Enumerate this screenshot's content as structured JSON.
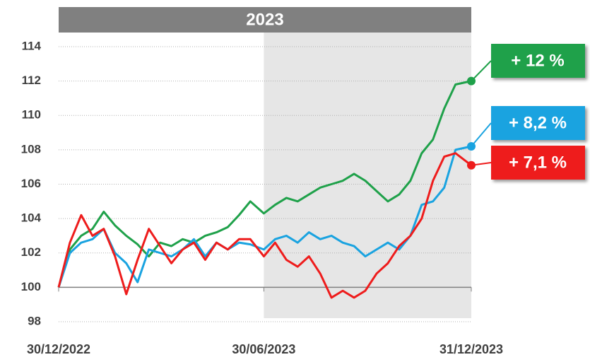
{
  "chart_data": {
    "type": "line",
    "title": "2023",
    "x": [
      "30/12/2022",
      "09/01/2023",
      "19/01/2023",
      "29/01/2023",
      "08/02/2023",
      "18/02/2023",
      "28/02/2023",
      "10/03/2023",
      "20/03/2023",
      "30/03/2023",
      "09/04/2023",
      "19/04/2023",
      "29/04/2023",
      "09/05/2023",
      "19/05/2023",
      "29/05/2023",
      "08/06/2023",
      "18/06/2023",
      "30/06/2023",
      "10/07/2023",
      "20/07/2023",
      "30/07/2023",
      "09/08/2023",
      "19/08/2023",
      "29/08/2023",
      "08/09/2023",
      "18/09/2023",
      "28/09/2023",
      "08/10/2023",
      "18/10/2023",
      "28/10/2023",
      "07/11/2023",
      "17/11/2023",
      "27/11/2023",
      "07/12/2023",
      "17/12/2023",
      "31/12/2023"
    ],
    "series": [
      {
        "name": "+ 12 %",
        "color": "#1fa14a",
        "values": [
          100,
          102.2,
          103,
          103.4,
          104.4,
          103.6,
          103,
          102.5,
          101.8,
          102.6,
          102.4,
          102.8,
          102.6,
          103,
          103.2,
          103.5,
          104.2,
          105,
          104.3,
          104.8,
          105.2,
          105,
          105.4,
          105.8,
          106,
          106.2,
          106.6,
          106.2,
          105.6,
          105,
          105.4,
          106.2,
          107.8,
          108.6,
          110.4,
          111.8,
          112
        ]
      },
      {
        "name": "+ 8,2 %",
        "color": "#1aa3e0",
        "values": [
          100,
          102,
          102.6,
          102.8,
          103.4,
          102,
          101.4,
          100.3,
          102.2,
          102,
          101.8,
          102.2,
          102.8,
          101.8,
          102.6,
          102.2,
          102.6,
          102.5,
          102.2,
          102.8,
          103,
          102.6,
          103.2,
          102.8,
          103,
          102.6,
          102.4,
          101.8,
          102.2,
          102.6,
          102.2,
          103,
          104.8,
          105,
          105.8,
          108,
          108.2
        ]
      },
      {
        "name": "+ 7,1 %",
        "color": "#ee1c1c",
        "values": [
          100,
          102.6,
          104.2,
          103,
          103.4,
          101.8,
          99.6,
          101.6,
          103.4,
          102.4,
          101.4,
          102.2,
          102.6,
          101.6,
          102.6,
          102.2,
          102.8,
          102.8,
          101.8,
          102.6,
          101.6,
          101.2,
          101.8,
          100.8,
          99.4,
          99.8,
          99.4,
          99.8,
          100.8,
          101.4,
          102.4,
          103,
          104,
          106.2,
          107.6,
          107.8,
          107.1
        ]
      }
    ],
    "xlim": [
      "30/12/2022",
      "31/12/2023"
    ],
    "xticks": [
      "30/12/2022",
      "30/06/2023",
      "31/12/2023"
    ],
    "ylim": [
      98,
      114
    ],
    "yticks": [
      98,
      100,
      102,
      104,
      106,
      108,
      110,
      112,
      114
    ],
    "baseline": 100,
    "grid": true
  }
}
